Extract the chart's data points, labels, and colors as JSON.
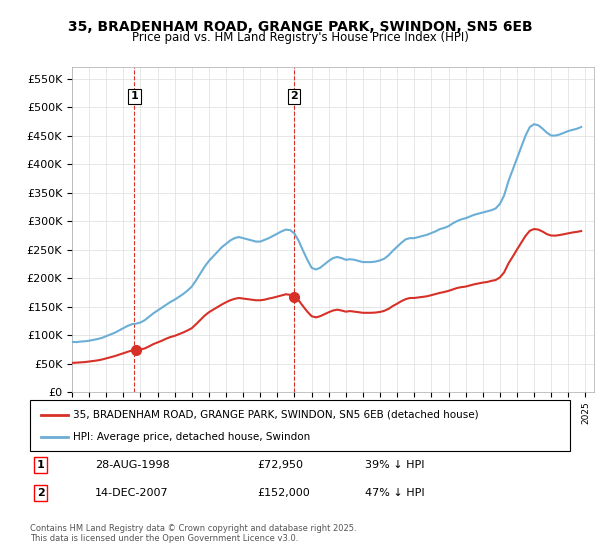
{
  "title_line1": "35, BRADENHAM ROAD, GRANGE PARK, SWINDON, SN5 6EB",
  "title_line2": "Price paid vs. HM Land Registry's House Price Index (HPI)",
  "hpi_color": "#6baed6",
  "price_color": "#d73027",
  "dashed_color": "#d73027",
  "background_color": "#ffffff",
  "grid_color": "#dddddd",
  "ylim": [
    0,
    570000
  ],
  "yticks": [
    0,
    50000,
    100000,
    150000,
    200000,
    250000,
    300000,
    350000,
    400000,
    450000,
    500000,
    550000
  ],
  "ytick_labels": [
    "£0",
    "£50K",
    "£100K",
    "£150K",
    "£200K",
    "£250K",
    "£300K",
    "£350K",
    "£400K",
    "£450K",
    "£500K",
    "£550K"
  ],
  "legend_line1": "35, BRADENHAM ROAD, GRANGE PARK, SWINDON, SN5 6EB (detached house)",
  "legend_line2": "HPI: Average price, detached house, Swindon",
  "sale1_label": "1",
  "sale1_date": "28-AUG-1998",
  "sale1_price": "£72,950",
  "sale1_hpi": "39% ↓ HPI",
  "sale1_year": 1998.65,
  "sale1_value": 72950,
  "sale2_label": "2",
  "sale2_date": "14-DEC-2007",
  "sale2_price": "£152,000",
  "sale2_hpi": "47% ↓ HPI",
  "sale2_year": 2007.95,
  "sale2_value": 152000,
  "footer": "Contains HM Land Registry data © Crown copyright and database right 2025.\nThis data is licensed under the Open Government Licence v3.0.",
  "hpi_data": {
    "years": [
      1995.0,
      1995.25,
      1995.5,
      1995.75,
      1996.0,
      1996.25,
      1996.5,
      1996.75,
      1997.0,
      1997.25,
      1997.5,
      1997.75,
      1998.0,
      1998.25,
      1998.5,
      1998.75,
      1999.0,
      1999.25,
      1999.5,
      1999.75,
      2000.0,
      2000.25,
      2000.5,
      2000.75,
      2001.0,
      2001.25,
      2001.5,
      2001.75,
      2002.0,
      2002.25,
      2002.5,
      2002.75,
      2003.0,
      2003.25,
      2003.5,
      2003.75,
      2004.0,
      2004.25,
      2004.5,
      2004.75,
      2005.0,
      2005.25,
      2005.5,
      2005.75,
      2006.0,
      2006.25,
      2006.5,
      2006.75,
      2007.0,
      2007.25,
      2007.5,
      2007.75,
      2008.0,
      2008.25,
      2008.5,
      2008.75,
      2009.0,
      2009.25,
      2009.5,
      2009.75,
      2010.0,
      2010.25,
      2010.5,
      2010.75,
      2011.0,
      2011.25,
      2011.5,
      2011.75,
      2012.0,
      2012.25,
      2012.5,
      2012.75,
      2013.0,
      2013.25,
      2013.5,
      2013.75,
      2014.0,
      2014.25,
      2014.5,
      2014.75,
      2015.0,
      2015.25,
      2015.5,
      2015.75,
      2016.0,
      2016.25,
      2016.5,
      2016.75,
      2017.0,
      2017.25,
      2017.5,
      2017.75,
      2018.0,
      2018.25,
      2018.5,
      2018.75,
      2019.0,
      2019.25,
      2019.5,
      2019.75,
      2020.0,
      2020.25,
      2020.5,
      2020.75,
      2021.0,
      2021.25,
      2021.5,
      2021.75,
      2022.0,
      2022.25,
      2022.5,
      2022.75,
      2023.0,
      2023.25,
      2023.5,
      2023.75,
      2024.0,
      2024.25,
      2024.5,
      2024.75
    ],
    "values": [
      88000,
      87500,
      88500,
      89000,
      90000,
      91500,
      93000,
      95000,
      98000,
      101000,
      104000,
      108000,
      112000,
      116000,
      119000,
      120000,
      122000,
      126000,
      132000,
      138000,
      143000,
      148000,
      153000,
      158000,
      162000,
      167000,
      172000,
      178000,
      185000,
      196000,
      208000,
      220000,
      230000,
      238000,
      246000,
      254000,
      260000,
      266000,
      270000,
      272000,
      270000,
      268000,
      266000,
      264000,
      264000,
      267000,
      270000,
      274000,
      278000,
      282000,
      285000,
      284000,
      278000,
      265000,
      248000,
      232000,
      218000,
      215000,
      218000,
      224000,
      230000,
      235000,
      237000,
      235000,
      232000,
      233000,
      232000,
      230000,
      228000,
      228000,
      228000,
      229000,
      231000,
      234000,
      240000,
      248000,
      255000,
      262000,
      268000,
      270000,
      270000,
      272000,
      274000,
      276000,
      279000,
      282000,
      286000,
      288000,
      291000,
      296000,
      300000,
      303000,
      305000,
      308000,
      311000,
      313000,
      315000,
      317000,
      319000,
      322000,
      330000,
      345000,
      370000,
      390000,
      410000,
      430000,
      450000,
      465000,
      470000,
      468000,
      462000,
      455000,
      450000,
      450000,
      452000,
      455000,
      458000,
      460000,
      462000,
      465000
    ]
  },
  "price_data": {
    "years": [
      1995.0,
      1995.25,
      1995.5,
      1995.75,
      1996.0,
      1996.25,
      1996.5,
      1996.75,
      1997.0,
      1997.25,
      1997.5,
      1997.75,
      1998.0,
      1998.25,
      1998.5,
      1998.75,
      1999.0,
      1999.25,
      1999.5,
      1999.75,
      2000.0,
      2000.25,
      2000.5,
      2000.75,
      2001.0,
      2001.25,
      2001.5,
      2001.75,
      2002.0,
      2002.25,
      2002.5,
      2002.75,
      2003.0,
      2003.25,
      2003.5,
      2003.75,
      2004.0,
      2004.25,
      2004.5,
      2004.75,
      2005.0,
      2005.25,
      2005.5,
      2005.75,
      2006.0,
      2006.25,
      2006.5,
      2006.75,
      2007.0,
      2007.25,
      2007.5,
      2007.75,
      2008.0,
      2008.25,
      2008.5,
      2008.75,
      2009.0,
      2009.25,
      2009.5,
      2009.75,
      2010.0,
      2010.25,
      2010.5,
      2010.75,
      2011.0,
      2011.25,
      2011.5,
      2011.75,
      2012.0,
      2012.25,
      2012.5,
      2012.75,
      2013.0,
      2013.25,
      2013.5,
      2013.75,
      2014.0,
      2014.25,
      2014.5,
      2014.75,
      2015.0,
      2015.25,
      2015.5,
      2015.75,
      2016.0,
      2016.25,
      2016.5,
      2016.75,
      2017.0,
      2017.25,
      2017.5,
      2017.75,
      2018.0,
      2018.25,
      2018.5,
      2018.75,
      2019.0,
      2019.25,
      2019.5,
      2019.75,
      2020.0,
      2020.25,
      2020.5,
      2020.75,
      2021.0,
      2021.25,
      2021.5,
      2021.75,
      2022.0,
      2022.25,
      2022.5,
      2022.75,
      2023.0,
      2023.25,
      2023.5,
      2023.75,
      2024.0,
      2024.25,
      2024.5,
      2024.75
    ],
    "values": [
      51000,
      51500,
      52000,
      52500,
      53500,
      54500,
      55500,
      57000,
      59000,
      61000,
      63000,
      65500,
      68000,
      70500,
      72950,
      73500,
      74500,
      76500,
      80000,
      84000,
      87000,
      90000,
      93500,
      96500,
      98500,
      101500,
      104500,
      108000,
      112000,
      119000,
      126500,
      134000,
      140000,
      144500,
      149000,
      153500,
      157500,
      161000,
      163500,
      165000,
      164000,
      163000,
      162000,
      161000,
      161000,
      162000,
      164000,
      165500,
      167500,
      169500,
      171500,
      170500,
      167500,
      160500,
      150500,
      141000,
      133000,
      131000,
      133000,
      136500,
      140000,
      143000,
      144500,
      143000,
      141000,
      142000,
      141000,
      140000,
      139000,
      139000,
      139000,
      139500,
      140500,
      142500,
      146000,
      151000,
      155000,
      159500,
      163000,
      165000,
      165000,
      166000,
      167000,
      168000,
      170000,
      172000,
      174000,
      175500,
      177500,
      180000,
      182500,
      184000,
      185000,
      187000,
      189000,
      190500,
      192000,
      193000,
      195000,
      196500,
      201000,
      210000,
      225500,
      237500,
      250000,
      262000,
      274000,
      283000,
      286000,
      285000,
      281500,
      277000,
      274500,
      274500,
      275500,
      277000,
      278500,
      280000,
      281000,
      282500
    ]
  }
}
